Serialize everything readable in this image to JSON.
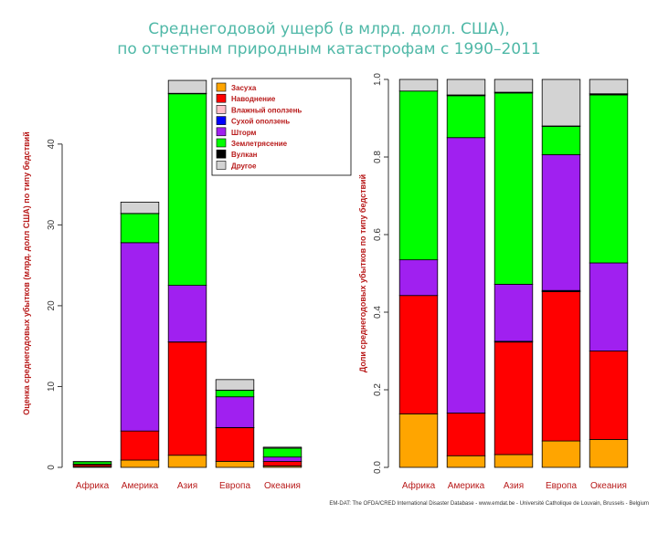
{
  "title_line1": "Среднегодовой ущерб (в млрд. долл. США),",
  "title_line2": "по отчетным природным катастрофам с 1990–2011",
  "credit": "EM-DAT: The OFDA/CRED International Disaster Database - www.emdat.be - Université Catholique de Louvain, Brussels - Belgium",
  "colors": {
    "drought": "#ffa500",
    "flood": "#ff0000",
    "wet_landslide": "#ffc0cb",
    "dry_landslide": "#0000ff",
    "storm": "#a020f0",
    "earthquake": "#00ff00",
    "volcano": "#000000",
    "other": "#d3d3d3"
  },
  "chart_data": [
    {
      "type": "bar",
      "stacked": true,
      "categories": [
        "Африка",
        "Америка",
        "Азия",
        "Европа",
        "Океания"
      ],
      "ylabel": "Оценка среднегодовых убытков (млрд. долл США) по типу бедствий",
      "ylim": [
        0,
        48
      ],
      "yticks": [
        0,
        10,
        20,
        30,
        40
      ],
      "legend_position": "top",
      "series": [
        {
          "name": "Засуха",
          "key": "drought",
          "values": [
            0.1,
            0.9,
            1.5,
            0.75,
            0.18
          ]
        },
        {
          "name": "Наводнение",
          "key": "flood",
          "values": [
            0.22,
            3.6,
            14.0,
            4.15,
            0.55
          ]
        },
        {
          "name": "Влажный оползень",
          "key": "wet_landslide",
          "values": [
            0.0,
            0.0,
            0.02,
            0.01,
            0.0
          ]
        },
        {
          "name": "Сухой оползень",
          "key": "dry_landslide",
          "values": [
            0.0,
            0.0,
            0.0,
            0.02,
            0.0
          ]
        },
        {
          "name": "Шторм",
          "key": "storm",
          "values": [
            0.07,
            23.3,
            7.0,
            3.8,
            0.55
          ]
        },
        {
          "name": "Землетрясение",
          "key": "earthquake",
          "values": [
            0.31,
            3.6,
            23.7,
            0.8,
            1.1
          ]
        },
        {
          "name": "Вулкан",
          "key": "volcano",
          "values": [
            0.0,
            0.02,
            0.06,
            0.03,
            0.01
          ]
        },
        {
          "name": "Другое",
          "key": "other",
          "values": [
            0.02,
            1.4,
            1.6,
            1.3,
            0.11
          ]
        }
      ]
    },
    {
      "type": "bar",
      "stacked": true,
      "categories": [
        "Африка",
        "Америка",
        "Азия",
        "Европа",
        "Океания"
      ],
      "ylabel": "Доли среднегодовых убытков по типу бедствий",
      "ylim": [
        0,
        1.0
      ],
      "yticks": [
        0.0,
        0.2,
        0.4,
        0.6,
        0.8,
        1.0
      ],
      "series": [
        {
          "name": "Засуха",
          "key": "drought",
          "values": [
            0.138,
            0.03,
            0.033,
            0.068,
            0.072
          ]
        },
        {
          "name": "Наводнение",
          "key": "flood",
          "values": [
            0.305,
            0.11,
            0.29,
            0.385,
            0.228
          ]
        },
        {
          "name": "Влажный оползень",
          "key": "wet_landslide",
          "values": [
            0.0,
            0.0,
            0.002,
            0.001,
            0.0
          ]
        },
        {
          "name": "Сухой оползень",
          "key": "dry_landslide",
          "values": [
            0.0,
            0.0,
            0.0,
            0.002,
            0.0
          ]
        },
        {
          "name": "Шторм",
          "key": "storm",
          "values": [
            0.092,
            0.71,
            0.147,
            0.35,
            0.227
          ]
        },
        {
          "name": "Землетрясение",
          "key": "earthquake",
          "values": [
            0.435,
            0.108,
            0.493,
            0.073,
            0.433
          ]
        },
        {
          "name": "Вулкан",
          "key": "volcano",
          "values": [
            0.0,
            0.002,
            0.002,
            0.001,
            0.003
          ]
        },
        {
          "name": "Другое",
          "key": "other",
          "values": [
            0.03,
            0.04,
            0.033,
            0.12,
            0.037
          ]
        }
      ]
    }
  ]
}
